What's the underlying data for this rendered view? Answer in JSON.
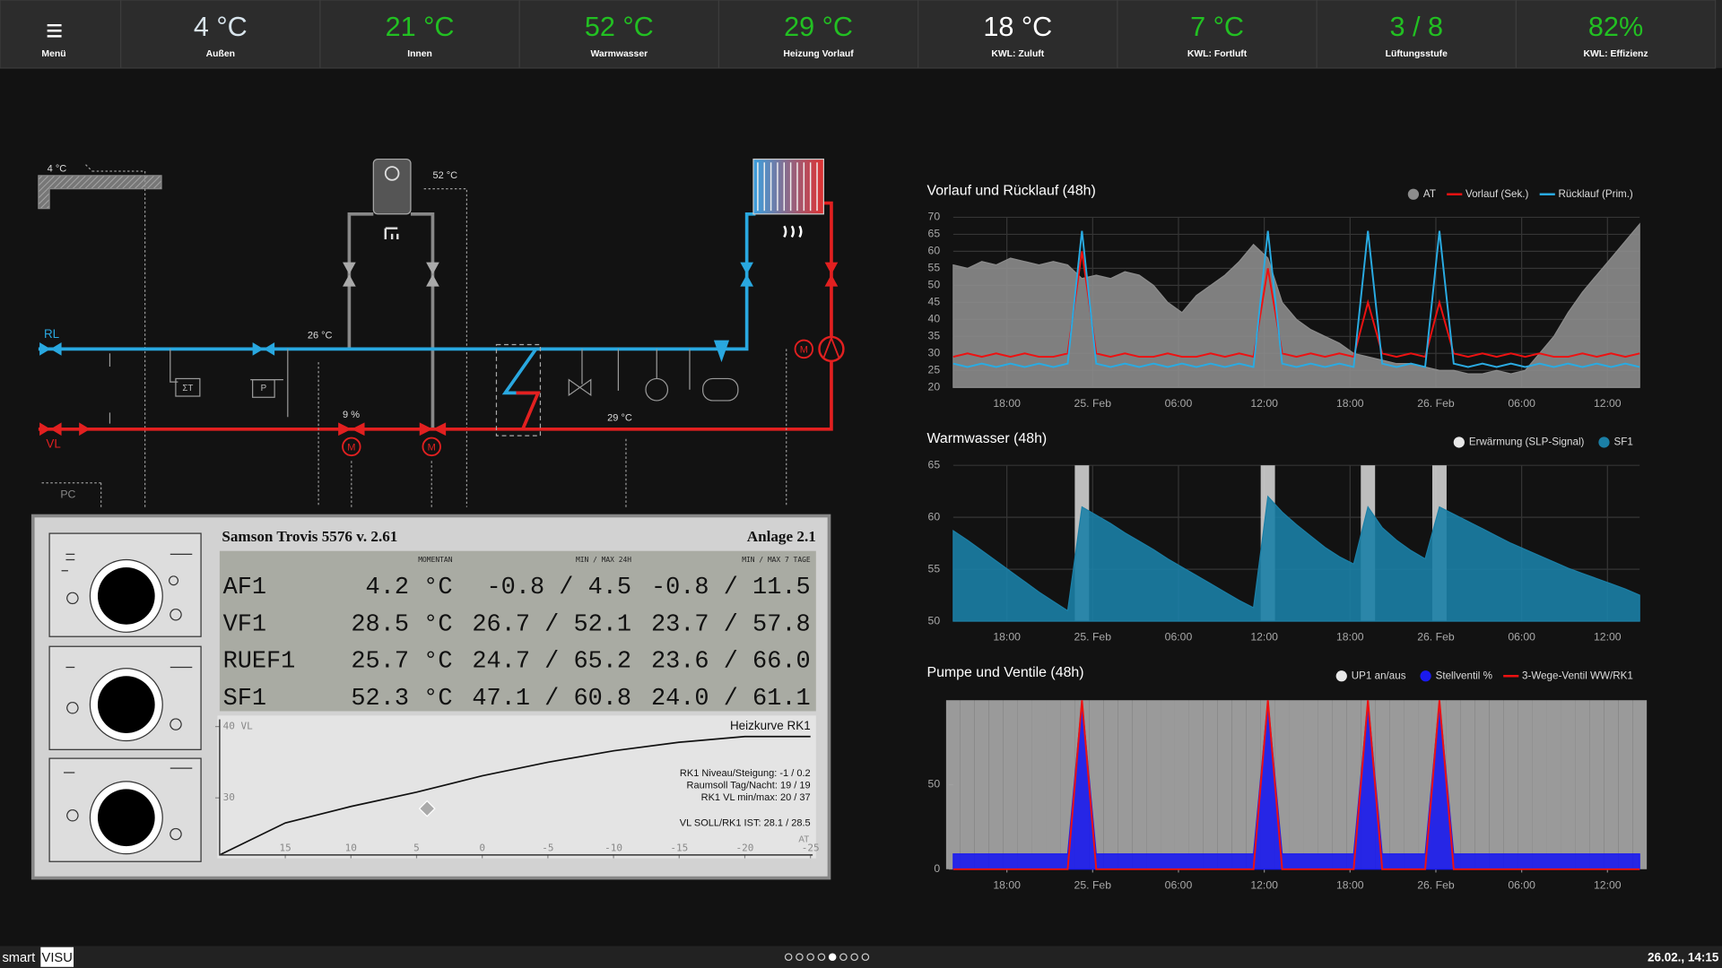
{
  "menu": {
    "label": "Menü"
  },
  "tiles": [
    {
      "value": "4 °C",
      "label": "Außen",
      "color": "#d8e4ec"
    },
    {
      "value": "21 °C",
      "label": "Innen",
      "color": "#22c022"
    },
    {
      "value": "52 °C",
      "label": "Warmwasser",
      "color": "#22c022"
    },
    {
      "value": "29 °C",
      "label": "Heizung Vorlauf",
      "color": "#22c022"
    },
    {
      "value": "18 °C",
      "label": "KWL: Zuluft",
      "color": "#ffffff"
    },
    {
      "value": "7 °C",
      "label": "KWL: Fortluft",
      "color": "#22c022"
    },
    {
      "value": "3 / 8",
      "label": "Lüftungsstufe",
      "color": "#22c022"
    },
    {
      "value": "82%",
      "label": "KWL: Effizienz",
      "color": "#22c022"
    }
  ],
  "schematic": {
    "outside_temp": "4 °C",
    "tank_temp": "52 °C",
    "return": "RL",
    "flow": "VL",
    "return_temp": "26 °C",
    "valve_pos": "9 %",
    "flow_temp": "29 °C",
    "pc": "PC",
    "sum_t": "ΣT",
    "pump": "P",
    "motor": "M"
  },
  "trovis": {
    "title": "Samson Trovis 5576 v. 2.61",
    "plant": "Anlage 2.1",
    "columns": [
      "MOMENTAN",
      "MIN / MAX 24H",
      "MIN / MAX 7 TAGE"
    ],
    "rows": [
      [
        "AF1",
        "4.2 °C",
        "-0.8 / 4.5",
        "-0.8 / 11.5"
      ],
      [
        "VF1",
        "28.5 °C",
        "26.7 / 52.1",
        "23.7 / 57.8"
      ],
      [
        "RUEF1",
        "25.7 °C",
        "24.7 / 65.2",
        "23.6 / 66.0"
      ],
      [
        "SF1",
        "52.3 °C",
        "47.1 / 60.8",
        "24.0 / 61.1"
      ]
    ]
  },
  "chart_data": [
    {
      "type": "line",
      "title": "Vorlauf und Rücklauf (48h)",
      "grid": true,
      "x": [
        0,
        1,
        2,
        3,
        4,
        5,
        6,
        7,
        8,
        9,
        10,
        11,
        12,
        13,
        14,
        15,
        16,
        17,
        18,
        19,
        20,
        21,
        22,
        23,
        24,
        25,
        26,
        27,
        28,
        29,
        30,
        31,
        32,
        33,
        34,
        35,
        36,
        37,
        38,
        39,
        40,
        41,
        42,
        43,
        44,
        45,
        46,
        47,
        48
      ],
      "xlim": [
        0,
        48
      ],
      "xticks": [
        {
          "value": 3.75,
          "label": "18:00"
        },
        {
          "value": 9.75,
          "label": "25. Feb"
        },
        {
          "value": 15.75,
          "label": "06:00"
        },
        {
          "value": 21.75,
          "label": "12:00"
        },
        {
          "value": 27.75,
          "label": "18:00"
        },
        {
          "value": 33.75,
          "label": "26. Feb"
        },
        {
          "value": 39.75,
          "label": "06:00"
        },
        {
          "value": 45.75,
          "label": "12:00"
        }
      ],
      "ylim": [
        20,
        70
      ],
      "yticks": [
        20,
        25,
        30,
        35,
        40,
        45,
        50,
        55,
        60,
        65,
        70
      ],
      "series": [
        {
          "name": "AT",
          "color": "#8c8c8c",
          "style": "area",
          "values": [
            56,
            55,
            57,
            56,
            58,
            57,
            56,
            57,
            56,
            52,
            53,
            52,
            54,
            53,
            50,
            45,
            42,
            47,
            50,
            53,
            57,
            62,
            58,
            45,
            40,
            37,
            35,
            33,
            30,
            29,
            28,
            27,
            27,
            26,
            25,
            25,
            24,
            24,
            25,
            24,
            25,
            30,
            35,
            42,
            48,
            53,
            58,
            63,
            68
          ]
        },
        {
          "name": "Vorlauf (Sek.)",
          "color": "#ee1111",
          "style": "line",
          "values": [
            29,
            30,
            29,
            30,
            29,
            30,
            29,
            29,
            30,
            60,
            30,
            29,
            30,
            29,
            29,
            30,
            29,
            29,
            30,
            29,
            30,
            29,
            55,
            30,
            29,
            30,
            29,
            30,
            29,
            45,
            30,
            29,
            30,
            29,
            45,
            30,
            29,
            30,
            29,
            30,
            29,
            30,
            29,
            29,
            30,
            29,
            30,
            29,
            30
          ]
        },
        {
          "name": "Rücklauf (Prim.)",
          "color": "#29abe2",
          "style": "line",
          "values": [
            27,
            26,
            27,
            26,
            27,
            26,
            27,
            26,
            27,
            66,
            27,
            26,
            27,
            26,
            27,
            26,
            27,
            26,
            27,
            26,
            27,
            26,
            66,
            27,
            26,
            27,
            26,
            27,
            26,
            66,
            27,
            26,
            27,
            26,
            66,
            27,
            26,
            27,
            26,
            27,
            26,
            27,
            26,
            27,
            26,
            27,
            26,
            27,
            26
          ]
        }
      ]
    },
    {
      "type": "line",
      "title": "Warmwasser (48h)",
      "grid": true,
      "x": [
        0,
        1,
        2,
        3,
        4,
        5,
        6,
        7,
        8,
        9,
        10,
        11,
        12,
        13,
        14,
        15,
        16,
        17,
        18,
        19,
        20,
        21,
        22,
        23,
        24,
        25,
        26,
        27,
        28,
        29,
        30,
        31,
        32,
        33,
        34,
        35,
        36,
        37,
        38,
        39,
        40,
        41,
        42,
        43,
        44,
        45,
        46,
        47,
        48
      ],
      "xlim": [
        0,
        48
      ],
      "xticks": [
        {
          "value": 3.75,
          "label": "18:00"
        },
        {
          "value": 9.75,
          "label": "25. Feb"
        },
        {
          "value": 15.75,
          "label": "06:00"
        },
        {
          "value": 21.75,
          "label": "12:00"
        },
        {
          "value": 27.75,
          "label": "18:00"
        },
        {
          "value": 33.75,
          "label": "26. Feb"
        },
        {
          "value": 39.75,
          "label": "06:00"
        },
        {
          "value": 45.75,
          "label": "12:00"
        }
      ],
      "ylim": [
        50,
        65
      ],
      "yticks": [
        50,
        55,
        60,
        65
      ],
      "series": [
        {
          "name": "Erwärmung (SLP-Signal)",
          "color": "#d0d0d0",
          "style": "signal",
          "values": [
            0,
            0,
            0,
            0,
            0,
            0,
            0,
            0,
            0,
            1,
            0,
            0,
            0,
            0,
            0,
            0,
            0,
            0,
            0,
            0,
            0,
            0,
            1,
            0,
            0,
            0,
            0,
            0,
            0,
            1,
            0,
            0,
            0,
            0,
            1,
            0,
            0,
            0,
            0,
            0,
            0,
            0,
            0,
            0,
            0,
            0,
            0,
            0,
            0
          ]
        },
        {
          "name": "SF1",
          "color": "#1b7fa6",
          "style": "area",
          "values": [
            58.7,
            57.8,
            56.8,
            55.8,
            54.8,
            53.8,
            52.8,
            51.9,
            51.0,
            61,
            60.2,
            59.4,
            58.5,
            57.7,
            56.9,
            56.0,
            55.2,
            54.4,
            53.6,
            52.8,
            52.0,
            51.3,
            62,
            60.5,
            59.3,
            58.2,
            57.1,
            56.2,
            55.5,
            61,
            59,
            57.8,
            56.8,
            56.0,
            61,
            60.3,
            59.6,
            58.9,
            58.2,
            57.5,
            56.9,
            56.3,
            55.7,
            55.1,
            54.6,
            54.1,
            53.6,
            53.1,
            52.5
          ]
        }
      ]
    },
    {
      "type": "line",
      "title": "Pumpe und Ventile (48h)",
      "grid": false,
      "x": [
        0,
        1,
        2,
        3,
        4,
        5,
        6,
        7,
        8,
        9,
        10,
        11,
        12,
        13,
        14,
        15,
        16,
        17,
        18,
        19,
        20,
        21,
        22,
        23,
        24,
        25,
        26,
        27,
        28,
        29,
        30,
        31,
        32,
        33,
        34,
        35,
        36,
        37,
        38,
        39,
        40,
        41,
        42,
        43,
        44,
        45,
        46,
        47,
        48
      ],
      "xlim": [
        0,
        48
      ],
      "xticks": [
        {
          "value": 3.75,
          "label": "18:00"
        },
        {
          "value": 9.75,
          "label": "25. Feb"
        },
        {
          "value": 15.75,
          "label": "06:00"
        },
        {
          "value": 21.75,
          "label": "12:00"
        },
        {
          "value": 27.75,
          "label": "18:00"
        },
        {
          "value": 33.75,
          "label": "26. Feb"
        },
        {
          "value": 39.75,
          "label": "06:00"
        },
        {
          "value": 45.75,
          "label": "12:00"
        }
      ],
      "ylim": [
        0,
        100
      ],
      "yticks": [
        0,
        50
      ],
      "series": [
        {
          "name": "UP1 an/aus",
          "color": "#aaaaaa",
          "style": "signal",
          "values": [
            1,
            1,
            1,
            1,
            1,
            1,
            1,
            1,
            1,
            1,
            1,
            1,
            1,
            1,
            1,
            1,
            1,
            1,
            1,
            1,
            1,
            1,
            1,
            1,
            1,
            1,
            1,
            1,
            1,
            1,
            1,
            1,
            1,
            1,
            1,
            1,
            1,
            1,
            1,
            1,
            1,
            1,
            1,
            1,
            1,
            1,
            1,
            1,
            1
          ]
        },
        {
          "name": "Stellventil %",
          "color": "#1a1aee",
          "style": "area",
          "values": [
            9,
            9,
            9,
            9,
            9,
            9,
            9,
            9,
            9,
            100,
            9,
            9,
            9,
            9,
            9,
            9,
            9,
            9,
            9,
            9,
            9,
            9,
            100,
            9,
            9,
            9,
            9,
            9,
            9,
            100,
            9,
            9,
            9,
            9,
            100,
            9,
            9,
            9,
            9,
            9,
            9,
            9,
            9,
            9,
            9,
            9,
            9,
            9,
            9
          ]
        },
        {
          "name": "3-Wege-Ventil WW/RK1",
          "color": "#ee1111",
          "style": "line",
          "values": [
            0,
            0,
            0,
            0,
            0,
            0,
            0,
            0,
            0,
            100,
            0,
            0,
            0,
            0,
            0,
            0,
            0,
            0,
            0,
            0,
            0,
            0,
            100,
            0,
            0,
            0,
            0,
            0,
            0,
            100,
            0,
            0,
            0,
            0,
            100,
            0,
            0,
            0,
            0,
            0,
            0,
            0,
            0,
            0,
            0,
            0,
            0,
            0,
            0
          ]
        }
      ]
    },
    {
      "type": "line",
      "title": "Heizkurve RK1",
      "grid": false,
      "xlabel": "AT",
      "x": [
        20,
        15,
        10,
        5,
        0,
        -5,
        -10,
        -15,
        -20,
        -25
      ],
      "values": [
        22,
        26.5,
        28.8,
        30.8,
        33.1,
        35,
        36.6,
        37.8,
        38.6,
        38.6
      ],
      "color": "#111111",
      "xlim": [
        20,
        -25
      ],
      "xticks": [
        15,
        10,
        5,
        0,
        -5,
        -10,
        -15,
        -20,
        -25
      ],
      "ylim": [
        22,
        41
      ],
      "yticks": [
        {
          "value": 40,
          "label": "40 VL"
        },
        30
      ],
      "marker": {
        "x": 4.2,
        "y": 28.5
      },
      "notes": [
        "RK1 Niveau/Steigung: -1 / 0.2",
        "Raumsoll Tag/Nacht: 19 / 19",
        "RK1 VL min/max: 20 / 37",
        "VL SOLL/RK1 IST: 28.1 / 28.5"
      ]
    }
  ],
  "footer": {
    "brand": "smart",
    "brand_box": "VISU",
    "datetime": "26.02., 14:15"
  }
}
